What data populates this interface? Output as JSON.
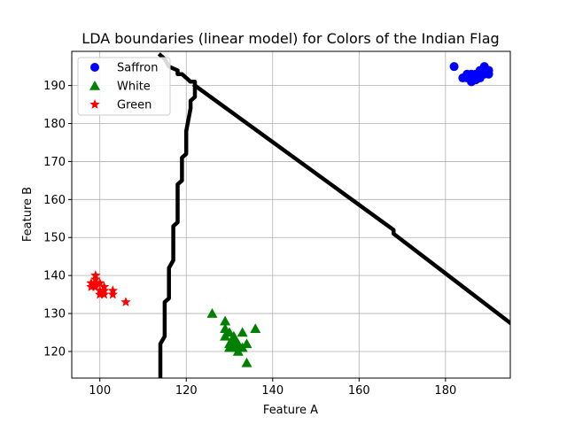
{
  "chart_data": {
    "type": "scatter",
    "title": "LDA boundaries (linear model) for Colors of the Indian Flag",
    "xlabel": "Feature A",
    "ylabel": "Feature B",
    "xlim": [
      93.5,
      195
    ],
    "ylim": [
      113,
      199
    ],
    "grid": true,
    "legend_position": "top-left",
    "xticks": [
      100,
      120,
      140,
      160,
      180
    ],
    "yticks": [
      120,
      130,
      140,
      150,
      160,
      170,
      180,
      190
    ],
    "xtick_labels": [
      "100",
      "120",
      "140",
      "160",
      "180"
    ],
    "ytick_labels": [
      "120",
      "130",
      "140",
      "150",
      "160",
      "170",
      "180",
      "190"
    ],
    "series": [
      {
        "name": "Saffron",
        "marker": "circle",
        "color": "#0000ff",
        "points": [
          [
            182,
            195
          ],
          [
            184,
            192
          ],
          [
            185,
            193
          ],
          [
            185,
            192
          ],
          [
            186,
            191
          ],
          [
            186,
            193
          ],
          [
            187,
            192
          ],
          [
            187,
            193
          ],
          [
            188,
            192
          ],
          [
            188,
            193
          ],
          [
            188,
            194
          ],
          [
            189,
            195
          ],
          [
            189,
            193
          ],
          [
            189,
            194
          ],
          [
            190,
            193
          ],
          [
            190,
            194
          ],
          [
            187,
            191.5
          ],
          [
            186,
            192
          ]
        ]
      },
      {
        "name": "White",
        "marker": "triangle",
        "color": "#008000",
        "points": [
          [
            126,
            130
          ],
          [
            129,
            128
          ],
          [
            129,
            126
          ],
          [
            129,
            124
          ],
          [
            130,
            125
          ],
          [
            130,
            122
          ],
          [
            130,
            121
          ],
          [
            131,
            124
          ],
          [
            131,
            123
          ],
          [
            131,
            121
          ],
          [
            132,
            122
          ],
          [
            132,
            120
          ],
          [
            133,
            125
          ],
          [
            133,
            121
          ],
          [
            134,
            122
          ],
          [
            134,
            117
          ],
          [
            136,
            126
          ]
        ]
      },
      {
        "name": "Green",
        "marker": "star",
        "color": "#ff0000",
        "points": [
          [
            98,
            137
          ],
          [
            98,
            138
          ],
          [
            99,
            140
          ],
          [
            99,
            139
          ],
          [
            99,
            138
          ],
          [
            99,
            137
          ],
          [
            100,
            138
          ],
          [
            100,
            136
          ],
          [
            100,
            135
          ],
          [
            101,
            137
          ],
          [
            101,
            136
          ],
          [
            101,
            135
          ],
          [
            103,
            136
          ],
          [
            103,
            135
          ],
          [
            106,
            133
          ]
        ]
      }
    ],
    "boundaries": [
      {
        "name": "boundary-1",
        "color": "#000000",
        "points": [
          [
            114,
            198
          ],
          [
            115,
            197
          ],
          [
            116,
            195
          ],
          [
            118,
            194
          ],
          [
            118,
            193
          ],
          [
            119,
            193
          ],
          [
            121,
            191
          ],
          [
            122,
            191
          ],
          [
            122,
            190
          ],
          [
            122,
            187
          ],
          [
            121,
            186
          ],
          [
            121,
            185
          ],
          [
            121,
            184
          ],
          [
            120,
            178
          ],
          [
            120,
            176
          ],
          [
            120,
            172
          ],
          [
            119,
            171
          ],
          [
            119,
            165
          ],
          [
            118,
            164
          ],
          [
            118,
            161
          ],
          [
            118,
            154
          ],
          [
            117,
            153
          ],
          [
            117,
            144
          ],
          [
            116,
            142
          ],
          [
            116,
            134
          ],
          [
            115,
            133
          ],
          [
            115,
            124
          ],
          [
            114,
            122
          ],
          [
            114,
            113
          ]
        ]
      },
      {
        "name": "boundary-2",
        "color": "#000000",
        "points": [
          [
            122,
            190
          ],
          [
            168,
            152
          ],
          [
            168,
            151
          ],
          [
            195,
            127.5
          ]
        ]
      }
    ]
  }
}
